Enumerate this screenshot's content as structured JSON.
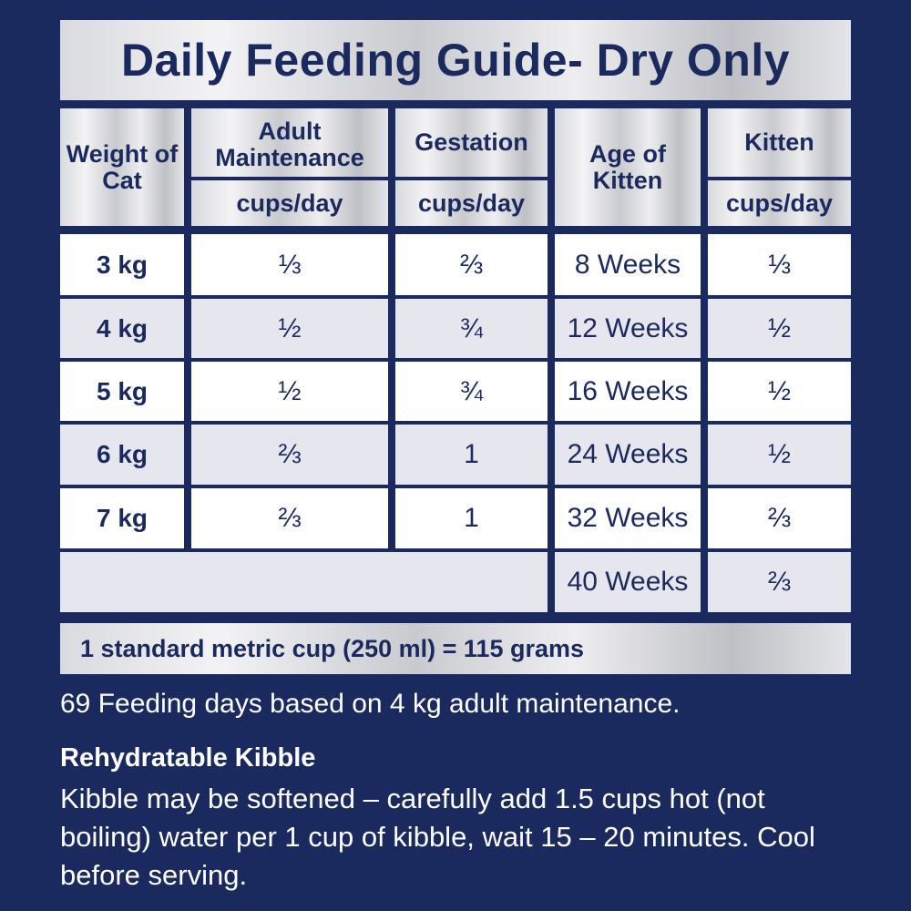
{
  "title": "Daily Feeding Guide- Dry Only",
  "headers": {
    "weight": "Weight of Cat",
    "adult": "Adult Maintenance",
    "gestation": "Gestation",
    "age": "Age of Kitten",
    "kitten": "Kitten",
    "unit": "cups/day"
  },
  "rows": [
    {
      "weight": "3 kg",
      "adult": "⅓",
      "gestation": "⅔",
      "age": "8 Weeks",
      "kitten": "⅓"
    },
    {
      "weight": "4 kg",
      "adult": "½",
      "gestation": "¾",
      "age": "12 Weeks",
      "kitten": "½"
    },
    {
      "weight": "5 kg",
      "adult": "½",
      "gestation": "¾",
      "age": "16 Weeks",
      "kitten": "½"
    },
    {
      "weight": "6 kg",
      "adult": "⅔",
      "gestation": "1",
      "age": "24 Weeks",
      "kitten": "½"
    },
    {
      "weight": "7 kg",
      "adult": "⅔",
      "gestation": "1",
      "age": "32 Weeks",
      "kitten": "⅔"
    },
    {
      "weight": "",
      "adult": "",
      "gestation": "",
      "age": "40 Weeks",
      "kitten": "⅔"
    }
  ],
  "footer": "1 standard metric cup (250 ml) = 115 grams",
  "feeding_days": "69 Feeding days based on 4 kg adult maintenance.",
  "rehydrate": {
    "heading": "Rehydratable Kibble",
    "body": "Kibble may be softened – carefully add 1.5 cups hot (not boiling) water per 1 cup of kibble, wait 15 – 20 minutes. Cool before serving."
  }
}
